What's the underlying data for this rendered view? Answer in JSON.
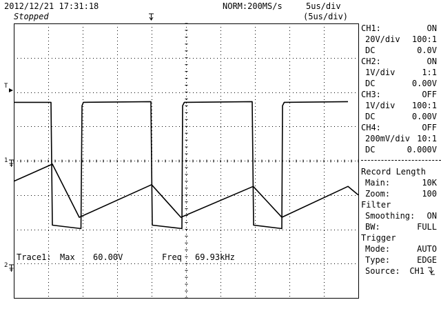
{
  "header": {
    "datetime": "2012/12/21  17:31:18",
    "status": "Stopped",
    "mode": "NORM:200MS/s",
    "timebase": "5us/div",
    "zoom_timebase": "(5us/div)"
  },
  "channels": [
    {
      "name": "CH1:",
      "state": "ON",
      "scale": "20V/div",
      "probe": "100:1",
      "coupling": "DC",
      "offset": "0.0V"
    },
    {
      "name": "CH2:",
      "state": "ON",
      "scale": "1V/div",
      "probe": "1:1",
      "coupling": "DC",
      "offset": "0.00V"
    },
    {
      "name": "CH3:",
      "state": "OFF",
      "scale": "1V/div",
      "probe": "100:1",
      "coupling": "DC",
      "offset": "0.00V"
    },
    {
      "name": "CH4:",
      "state": "OFF",
      "scale": "200mV/div",
      "probe": "10:1",
      "coupling": "DC",
      "offset": "0.000V"
    }
  ],
  "record_length": {
    "title": "Record Length",
    "main_label": "Main:",
    "main_value": "10K",
    "zoom_label": "Zoom:",
    "zoom_value": "100"
  },
  "filter": {
    "title": "Filter",
    "smoothing_label": "Smoothing:",
    "smoothing_value": "ON",
    "bw_label": "BW:",
    "bw_value": "FULL"
  },
  "trigger": {
    "title": "Trigger",
    "mode_label": "Mode:",
    "mode_value": "AUTO",
    "type_label": "Type:",
    "type_value": "EDGE",
    "source_label": "Source:",
    "source_value": "CH1",
    "slope_icon": "falling-edge-icon"
  },
  "measurement": {
    "trace_label": "Trace1:",
    "max_label": "Max",
    "max_value": "60.00V",
    "freq_label": "Freq",
    "freq_value": "69.93kHz"
  },
  "markers": {
    "trigger_level": "T",
    "ch1_ground": "1",
    "ch2_ground": "2"
  },
  "chart_data": {
    "type": "line",
    "x_unit": "div",
    "xlim": [
      0,
      10
    ],
    "ylim": [
      -4,
      4
    ],
    "grid": true,
    "series": [
      {
        "name": "CH1",
        "points": [
          [
            0,
            1.7
          ],
          [
            1.08,
            1.7
          ],
          [
            1.12,
            -1.88
          ],
          [
            1.95,
            -1.98
          ],
          [
            1.98,
            1.6
          ],
          [
            2.02,
            1.7
          ],
          [
            3.98,
            1.72
          ],
          [
            4.02,
            -1.88
          ],
          [
            4.88,
            -1.98
          ],
          [
            4.9,
            1.6
          ],
          [
            4.95,
            1.7
          ],
          [
            6.92,
            1.72
          ],
          [
            6.96,
            -1.88
          ],
          [
            7.78,
            -1.98
          ],
          [
            7.8,
            1.6
          ],
          [
            7.85,
            1.7
          ],
          [
            9.7,
            1.72
          ]
        ]
      },
      {
        "name": "CH2",
        "points": [
          [
            0,
            -0.6
          ],
          [
            1.12,
            -0.1
          ],
          [
            1.9,
            -1.65
          ],
          [
            4.0,
            -0.7
          ],
          [
            4.85,
            -1.65
          ],
          [
            6.95,
            -0.75
          ],
          [
            7.78,
            -1.65
          ],
          [
            9.7,
            -0.75
          ],
          [
            10,
            -1.0
          ]
        ]
      }
    ]
  }
}
